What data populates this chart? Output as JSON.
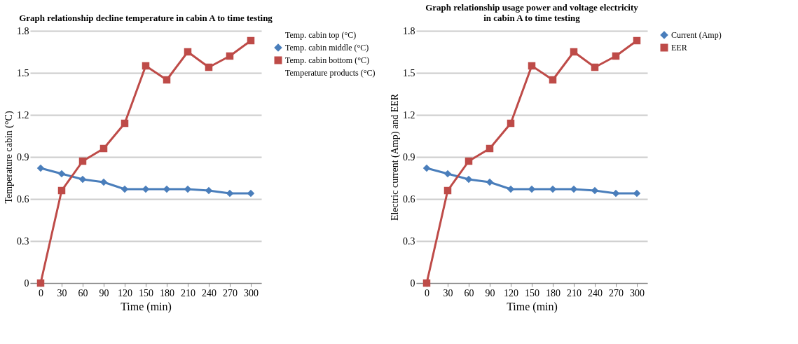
{
  "chart_data": [
    {
      "type": "line",
      "title": "Graph relationship decline temperature in cabin A to time testing",
      "xlabel": "Time (min)",
      "ylabel": "Temperature  cabin  (°C)",
      "categories": [
        "0",
        "30",
        "60",
        "90",
        "120",
        "150",
        "180",
        "210",
        "240",
        "270",
        "300"
      ],
      "ylim": [
        0,
        1.8
      ],
      "yticks": [
        0,
        0.3,
        0.6,
        0.9,
        1.2,
        1.5,
        1.8
      ],
      "grid": "y",
      "legend": "right",
      "line_style": "solid",
      "series": [
        {
          "name": "Temp. cabin top (°C)",
          "values": [
            null,
            null,
            null,
            null,
            null,
            null,
            null,
            null,
            null,
            null,
            null
          ],
          "marker": "none"
        },
        {
          "name": "Temp. cabin middle  (°C)",
          "color": "#4a7ebb",
          "marker": "diamond",
          "values": [
            0.82,
            0.78,
            0.74,
            0.72,
            0.67,
            0.67,
            0.67,
            0.67,
            0.66,
            0.64,
            0.64
          ]
        },
        {
          "name": "Temp. cabin bottom (°C)",
          "color": "#be4b48",
          "marker": "square",
          "values": [
            0,
            0.66,
            0.87,
            0.96,
            1.14,
            1.55,
            1.45,
            1.65,
            1.54,
            1.62,
            1.73
          ]
        },
        {
          "name": "Temperature products (°C)",
          "values": [
            null,
            null,
            null,
            null,
            null,
            null,
            null,
            null,
            null,
            null,
            null
          ],
          "marker": "none"
        }
      ]
    },
    {
      "type": "line",
      "title": "Graph relationship  usage power and voltage electricity\nin cabin A to time testing",
      "xlabel": "Time (min)",
      "ylabel": "Electric  current  (Amp)  and EER",
      "categories": [
        "0",
        "30",
        "60",
        "90",
        "120",
        "150",
        "180",
        "210",
        "240",
        "270",
        "300"
      ],
      "ylim": [
        0,
        1.8
      ],
      "yticks": [
        0,
        0.3,
        0.6,
        0.9,
        1.2,
        1.5,
        1.8
      ],
      "grid": "y",
      "legend": "right",
      "line_style": "solid",
      "series": [
        {
          "name": "Current (Amp)",
          "color": "#4a7ebb",
          "marker": "diamond",
          "values": [
            0.82,
            0.78,
            0.74,
            0.72,
            0.67,
            0.67,
            0.67,
            0.67,
            0.66,
            0.64,
            0.64
          ]
        },
        {
          "name": "EER",
          "color": "#be4b48",
          "marker": "square",
          "values": [
            0,
            0.66,
            0.87,
            0.96,
            1.14,
            1.55,
            1.45,
            1.65,
            1.54,
            1.62,
            1.73
          ]
        }
      ]
    }
  ]
}
